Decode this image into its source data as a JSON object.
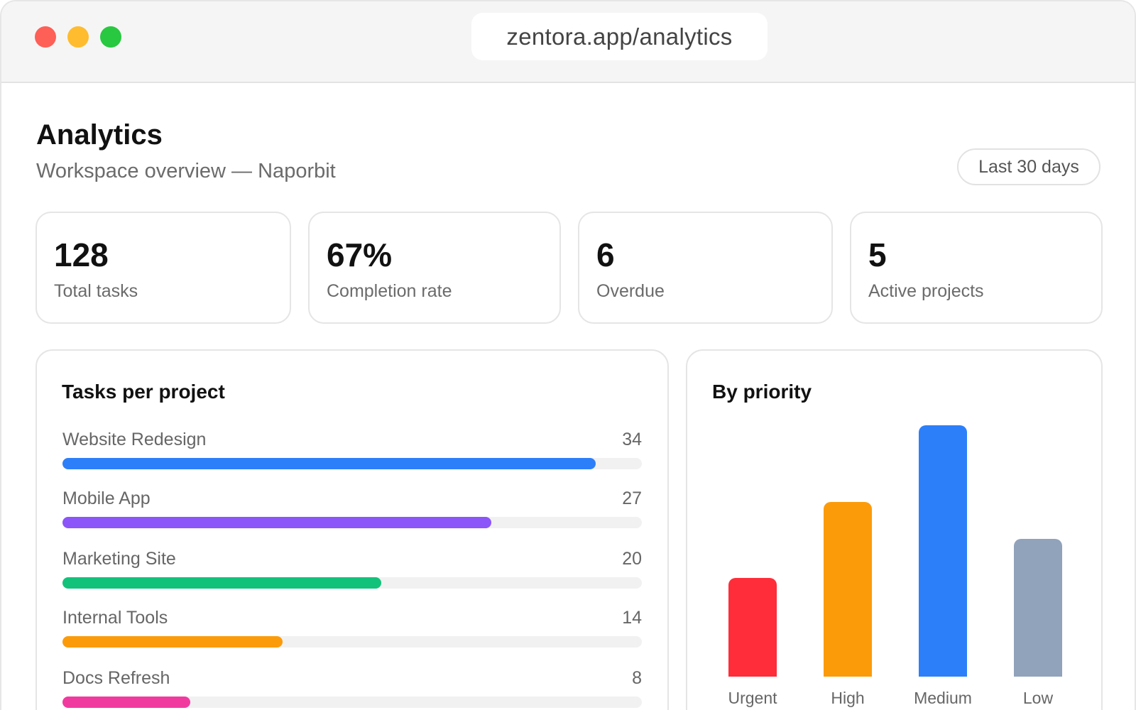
{
  "browser": {
    "url": "zentora.app/analytics"
  },
  "header": {
    "title": "Analytics",
    "subtitle": "Workspace overview — Naporbit",
    "range_label": "Last 30 days"
  },
  "stats": [
    {
      "value": "128",
      "label": "Total tasks"
    },
    {
      "value": "67%",
      "label": "Completion rate"
    },
    {
      "value": "6",
      "label": "Overdue"
    },
    {
      "value": "5",
      "label": "Active projects"
    }
  ],
  "tasks_per_project": {
    "title": "Tasks per project",
    "items": [
      {
        "name": "Website Redesign",
        "count": "34",
        "fraction": 0.92,
        "color": "#2d7ff9"
      },
      {
        "name": "Mobile App",
        "count": "27",
        "fraction": 0.74,
        "color": "#8b55f9"
      },
      {
        "name": "Marketing Site",
        "count": "20",
        "fraction": 0.55,
        "color": "#12c27b"
      },
      {
        "name": "Internal Tools",
        "count": "14",
        "fraction": 0.38,
        "color": "#fc9b0a"
      },
      {
        "name": "Docs Refresh",
        "count": "8",
        "fraction": 0.22,
        "color": "#f13aa0"
      }
    ]
  },
  "by_priority": {
    "title": "By priority",
    "chart_data": {
      "type": "bar",
      "categories": [
        "Urgent",
        "High",
        "Medium",
        "Low"
      ],
      "values": [
        40,
        71,
        102,
        56
      ],
      "colors": [
        "#ff2d3a",
        "#fc9b0a",
        "#2d7ff9",
        "#91a2bb"
      ],
      "ylim": [
        0,
        102
      ],
      "grid": false
    }
  }
}
